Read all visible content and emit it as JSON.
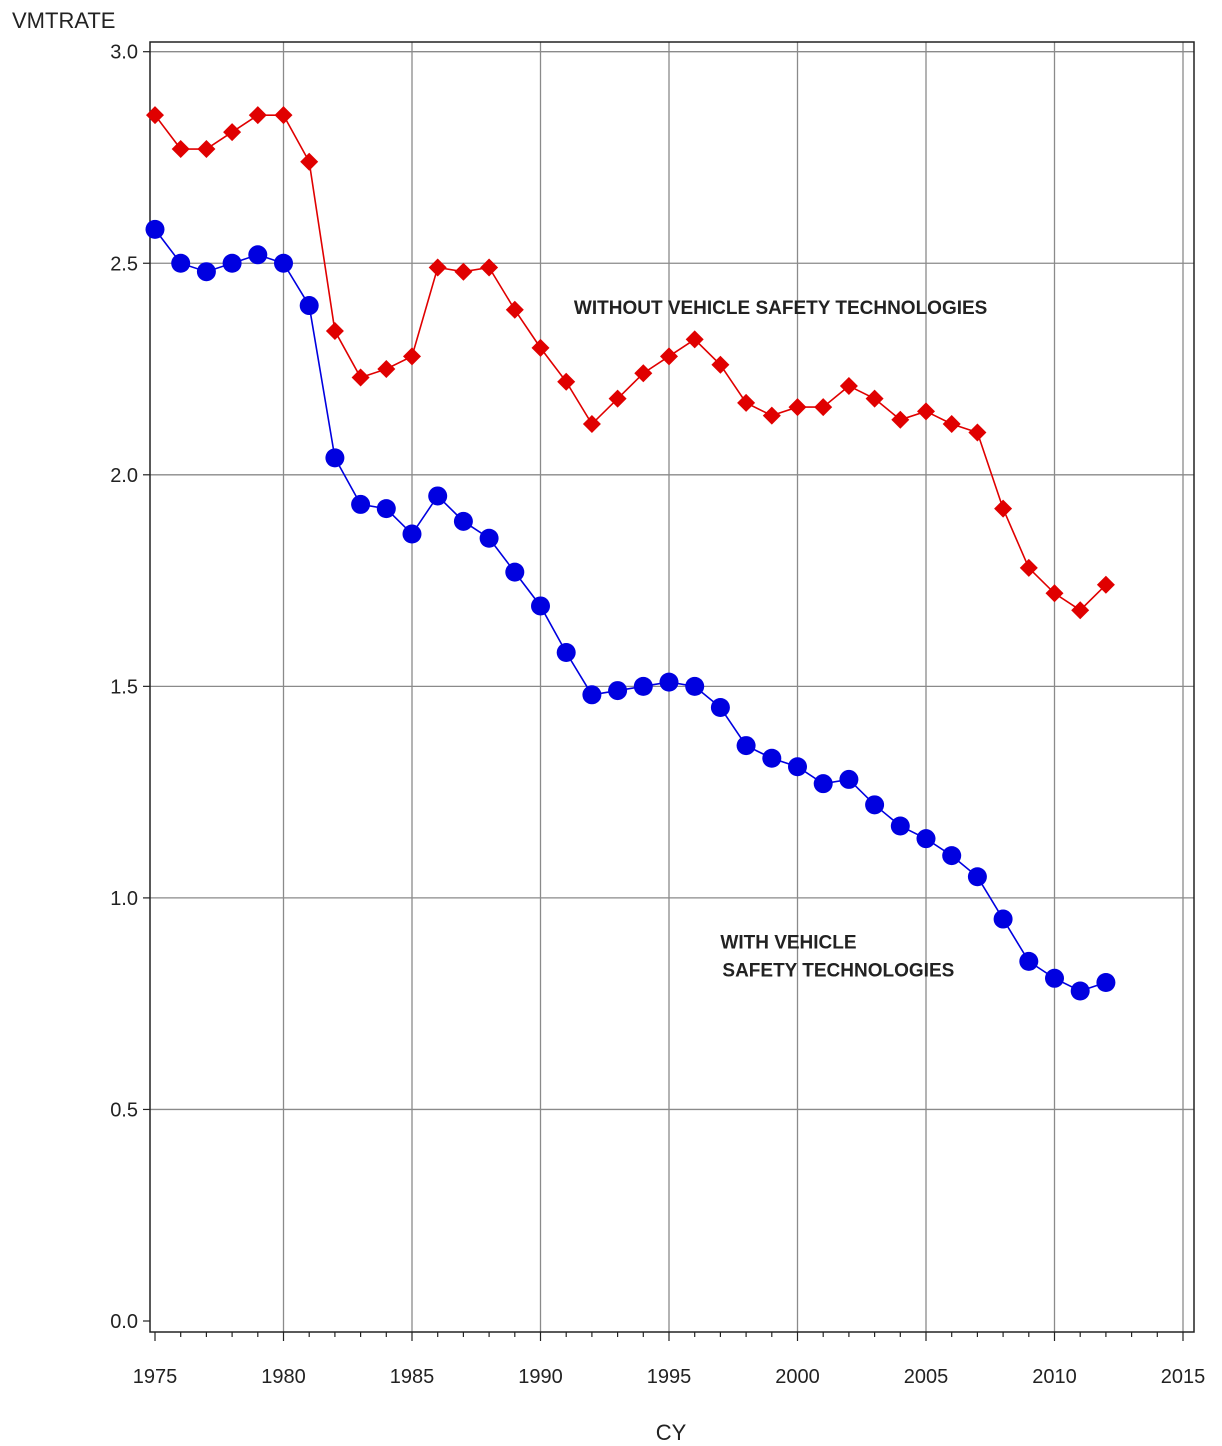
{
  "chart_data": {
    "type": "line",
    "ylabel": "VMTRATE",
    "xlabel": "CY",
    "xlim": [
      1975,
      2015
    ],
    "ylim": [
      0.0,
      3.0
    ],
    "x_ticks": [
      1975,
      1980,
      1985,
      1990,
      1995,
      2000,
      2005,
      2010,
      2015
    ],
    "x_tick_labels": [
      "1975",
      "1980",
      "1985",
      "1990",
      "1995",
      "2000",
      "2005",
      "2010",
      "2015"
    ],
    "y_ticks": [
      0.0,
      0.5,
      1.0,
      1.5,
      2.0,
      2.5,
      3.0
    ],
    "y_tick_labels": [
      "0.0",
      "0.5",
      "1.0",
      "1.5",
      "2.0",
      "2.5",
      "3.0"
    ],
    "grid": true,
    "x": [
      1975,
      1976,
      1977,
      1978,
      1979,
      1980,
      1981,
      1982,
      1983,
      1984,
      1985,
      1986,
      1987,
      1988,
      1989,
      1990,
      1991,
      1992,
      1993,
      1994,
      1995,
      1996,
      1997,
      1998,
      1999,
      2000,
      2001,
      2002,
      2003,
      2004,
      2005,
      2006,
      2007,
      2008,
      2009,
      2010,
      2011,
      2012
    ],
    "series": [
      {
        "color": "#e00000",
        "marker": "diamond",
        "values": [
          2.85,
          2.77,
          2.77,
          2.81,
          2.85,
          2.85,
          2.74,
          2.34,
          2.23,
          2.25,
          2.28,
          2.49,
          2.48,
          2.49,
          2.39,
          2.3,
          2.22,
          2.12,
          2.18,
          2.24,
          2.28,
          2.32,
          2.26,
          2.17,
          2.14,
          2.16,
          2.16,
          2.21,
          2.18,
          2.13,
          2.15,
          2.12,
          2.1,
          1.92,
          1.78,
          1.72,
          1.68,
          1.74
        ]
      },
      {
        "color": "#0000e0",
        "marker": "circle",
        "values": [
          2.58,
          2.5,
          2.48,
          2.5,
          2.52,
          2.5,
          2.4,
          2.04,
          1.93,
          1.92,
          1.86,
          1.95,
          1.89,
          1.85,
          1.77,
          1.69,
          1.58,
          1.48,
          1.49,
          1.5,
          1.51,
          1.5,
          1.45,
          1.36,
          1.33,
          1.31,
          1.27,
          1.28,
          1.22,
          1.17,
          1.14,
          1.1,
          1.05,
          0.95,
          0.85,
          0.81,
          0.78,
          0.8
        ]
      }
    ],
    "annotations": [
      {
        "lines": [
          "WITHOUT VEHICLE SAFETY TECHNOLOGIES"
        ],
        "x": 1991.3,
        "y": 2.38
      },
      {
        "lines": [
          "WITH VEHICLE",
          "SAFETY TECHNOLOGIES"
        ],
        "x": 1997.0,
        "y": 0.88
      }
    ]
  }
}
